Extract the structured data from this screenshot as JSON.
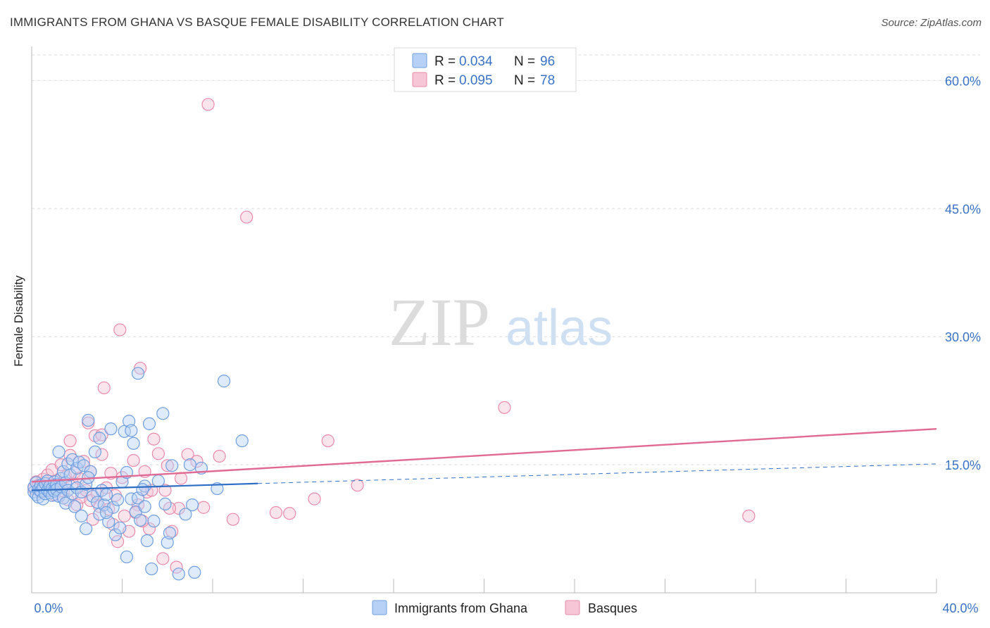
{
  "header": {
    "title": "IMMIGRANTS FROM GHANA VS BASQUE FEMALE DISABILITY CORRELATION CHART",
    "source": "Source: ZipAtlas.com"
  },
  "watermark": {
    "zip": "ZIP",
    "atlas": "atlas"
  },
  "colors": {
    "blue": "#6f9fe0",
    "blue_fill": "#b7d0f5",
    "blue_line": "#2f6fc4",
    "pink": "#e98aaa",
    "pink_fill": "#f7c6d6",
    "pink_line": "#e06a94",
    "tick_text": "#3a72c6",
    "grid": "#dddddd"
  },
  "legend": {
    "rows": [
      {
        "r_label": "R = ",
        "r_value": "0.034",
        "n_label": "N = ",
        "n_value": "96"
      },
      {
        "r_label": "R = ",
        "r_value": "0.095",
        "n_label": "N = ",
        "n_value": "78"
      }
    ]
  },
  "bottom_legend": [
    {
      "label": "Immigrants from Ghana"
    },
    {
      "label": "Basques"
    }
  ],
  "chart_data": {
    "type": "scatter",
    "title": "IMMIGRANTS FROM GHANA VS BASQUE FEMALE DISABILITY CORRELATION CHART",
    "xlabel": "",
    "ylabel": "Female Disability",
    "xlim": [
      0,
      40
    ],
    "ylim": [
      0,
      63
    ],
    "x_tick_labels": [
      "0.0%",
      "40.0%"
    ],
    "y_ticks": [
      15,
      30,
      45,
      60
    ],
    "y_tick_labels": [
      "15.0%",
      "30.0%",
      "45.0%",
      "60.0%"
    ],
    "series": [
      {
        "name": "Immigrants from Ghana",
        "R": 0.034,
        "N": 96,
        "trend": {
          "x0": 0,
          "y0": 12.0,
          "x1": 10,
          "y1": 12.8,
          "dashed_to_x": 40,
          "dashed_to_y": 15.1
        },
        "points": [
          [
            0.1,
            11.8
          ],
          [
            0.1,
            12.4
          ],
          [
            0.2,
            11.5
          ],
          [
            0.2,
            12.9
          ],
          [
            0.3,
            12.1
          ],
          [
            0.3,
            11.2
          ],
          [
            0.4,
            12.6
          ],
          [
            0.4,
            11.9
          ],
          [
            0.5,
            12.3
          ],
          [
            0.5,
            11.0
          ],
          [
            0.6,
            12.8
          ],
          [
            0.6,
            11.6
          ],
          [
            0.7,
            12.0
          ],
          [
            0.7,
            13.1
          ],
          [
            0.8,
            11.7
          ],
          [
            0.8,
            12.5
          ],
          [
            0.9,
            12.2
          ],
          [
            0.9,
            11.4
          ],
          [
            1.0,
            13.0
          ],
          [
            1.0,
            11.9
          ],
          [
            1.1,
            12.7
          ],
          [
            1.1,
            12.1
          ],
          [
            1.2,
            11.3
          ],
          [
            1.3,
            13.4
          ],
          [
            1.3,
            12.4
          ],
          [
            1.4,
            11.1
          ],
          [
            1.4,
            14.2
          ],
          [
            1.5,
            12.9
          ],
          [
            1.5,
            10.5
          ],
          [
            1.6,
            15.1
          ],
          [
            1.6,
            12.0
          ],
          [
            1.7,
            13.8
          ],
          [
            1.8,
            15.6
          ],
          [
            1.8,
            11.6
          ],
          [
            1.9,
            10.1
          ],
          [
            2.0,
            14.6
          ],
          [
            2.0,
            12.3
          ],
          [
            2.1,
            15.3
          ],
          [
            2.2,
            9.0
          ],
          [
            2.2,
            11.8
          ],
          [
            2.3,
            14.9
          ],
          [
            2.4,
            7.5
          ],
          [
            2.4,
            12.7
          ],
          [
            2.5,
            20.2
          ],
          [
            2.6,
            14.2
          ],
          [
            2.7,
            11.3
          ],
          [
            2.8,
            16.5
          ],
          [
            2.9,
            10.6
          ],
          [
            3.0,
            18.1
          ],
          [
            3.0,
            9.2
          ],
          [
            3.1,
            12.0
          ],
          [
            3.2,
            10.3
          ],
          [
            3.3,
            11.5
          ],
          [
            3.4,
            8.3
          ],
          [
            3.5,
            19.2
          ],
          [
            3.6,
            10.0
          ],
          [
            3.7,
            6.8
          ],
          [
            3.8,
            10.9
          ],
          [
            3.9,
            7.6
          ],
          [
            4.0,
            13.0
          ],
          [
            4.1,
            18.9
          ],
          [
            4.2,
            14.1
          ],
          [
            4.3,
            20.1
          ],
          [
            4.4,
            11.0
          ],
          [
            4.5,
            17.5
          ],
          [
            4.6,
            9.5
          ],
          [
            4.7,
            11.1
          ],
          [
            4.7,
            25.7
          ],
          [
            4.8,
            8.5
          ],
          [
            5.0,
            12.5
          ],
          [
            5.0,
            10.1
          ],
          [
            5.1,
            6.1
          ],
          [
            5.2,
            19.8
          ],
          [
            5.4,
            8.4
          ],
          [
            5.6,
            13.1
          ],
          [
            5.8,
            21.0
          ],
          [
            5.9,
            10.4
          ],
          [
            6.0,
            5.9
          ],
          [
            6.1,
            7.0
          ],
          [
            4.2,
            4.2
          ],
          [
            4.4,
            19.0
          ],
          [
            6.5,
            2.2
          ],
          [
            5.3,
            2.8
          ],
          [
            7.0,
            15.0
          ],
          [
            7.1,
            10.3
          ],
          [
            6.8,
            9.2
          ],
          [
            7.2,
            2.4
          ],
          [
            8.2,
            12.2
          ],
          [
            8.5,
            24.8
          ],
          [
            9.3,
            17.8
          ],
          [
            1.2,
            16.5
          ],
          [
            2.5,
            13.5
          ],
          [
            3.3,
            9.4
          ],
          [
            4.9,
            12.1
          ],
          [
            6.2,
            14.9
          ],
          [
            7.5,
            14.6
          ]
        ]
      },
      {
        "name": "Basques",
        "R": 0.095,
        "N": 78,
        "trend": {
          "x0": 0,
          "y0": 13.0,
          "x1": 40,
          "y1": 19.2
        },
        "points": [
          [
            0.1,
            12.2
          ],
          [
            0.2,
            13.0
          ],
          [
            0.3,
            12.6
          ],
          [
            0.4,
            11.8
          ],
          [
            0.5,
            13.3
          ],
          [
            0.6,
            12.1
          ],
          [
            0.7,
            13.8
          ],
          [
            0.8,
            12.4
          ],
          [
            0.9,
            14.4
          ],
          [
            1.0,
            11.5
          ],
          [
            1.1,
            13.1
          ],
          [
            1.2,
            12.7
          ],
          [
            1.3,
            15.0
          ],
          [
            1.4,
            11.9
          ],
          [
            1.5,
            13.6
          ],
          [
            1.6,
            10.9
          ],
          [
            1.7,
            16.1
          ],
          [
            1.8,
            12.8
          ],
          [
            1.9,
            14.1
          ],
          [
            2.0,
            10.3
          ],
          [
            2.1,
            13.4
          ],
          [
            2.2,
            11.2
          ],
          [
            2.3,
            15.4
          ],
          [
            2.4,
            12.0
          ],
          [
            2.5,
            19.9
          ],
          [
            2.6,
            10.8
          ],
          [
            2.7,
            8.6
          ],
          [
            2.8,
            18.4
          ],
          [
            2.9,
            11.6
          ],
          [
            3.0,
            10.1
          ],
          [
            3.1,
            16.2
          ],
          [
            3.2,
            24.0
          ],
          [
            3.3,
            12.3
          ],
          [
            3.4,
            9.8
          ],
          [
            3.5,
            14.0
          ],
          [
            3.6,
            8.0
          ],
          [
            3.7,
            11.4
          ],
          [
            3.8,
            6.0
          ],
          [
            3.9,
            30.8
          ],
          [
            4.0,
            13.5
          ],
          [
            4.1,
            9.0
          ],
          [
            4.3,
            7.2
          ],
          [
            4.5,
            15.5
          ],
          [
            4.7,
            10.3
          ],
          [
            4.8,
            26.3
          ],
          [
            5.0,
            14.2
          ],
          [
            5.1,
            11.8
          ],
          [
            5.2,
            7.5
          ],
          [
            5.4,
            18.0
          ],
          [
            5.6,
            16.3
          ],
          [
            5.8,
            4.0
          ],
          [
            5.9,
            12.0
          ],
          [
            6.0,
            14.9
          ],
          [
            6.2,
            7.2
          ],
          [
            6.4,
            3.0
          ],
          [
            6.5,
            9.9
          ],
          [
            6.6,
            13.4
          ],
          [
            6.9,
            16.2
          ],
          [
            7.3,
            15.4
          ],
          [
            7.6,
            10.0
          ],
          [
            8.3,
            16.0
          ],
          [
            8.9,
            8.6
          ],
          [
            9.5,
            44.0
          ],
          [
            10.8,
            9.4
          ],
          [
            11.4,
            9.3
          ],
          [
            12.5,
            11.0
          ],
          [
            13.1,
            17.8
          ],
          [
            14.4,
            12.6
          ],
          [
            20.9,
            21.7
          ],
          [
            31.7,
            9.0
          ],
          [
            7.8,
            57.2
          ],
          [
            1.7,
            17.8
          ],
          [
            3.1,
            18.5
          ],
          [
            4.6,
            9.4
          ],
          [
            5.3,
            12.0
          ],
          [
            6.1,
            9.9
          ],
          [
            2.6,
            14.2
          ],
          [
            4.9,
            8.4
          ]
        ]
      }
    ]
  }
}
